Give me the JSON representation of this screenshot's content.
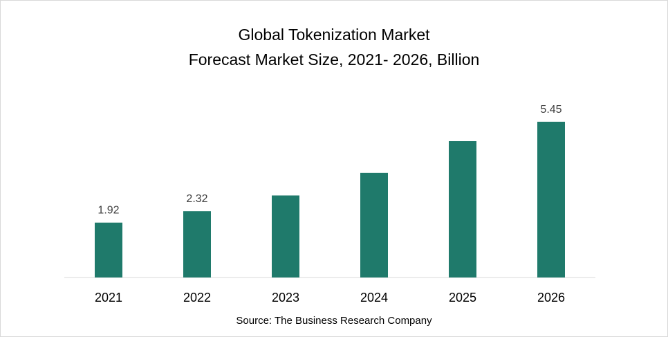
{
  "chart_data": {
    "type": "bar",
    "title": "Global Tokenization Market",
    "subtitle": "Forecast Market Size, 2021- 2026, Billion",
    "categories": [
      "2021",
      "2022",
      "2023",
      "2024",
      "2025",
      "2026"
    ],
    "values": [
      1.92,
      2.32,
      2.87,
      3.66,
      4.77,
      5.45
    ],
    "data_labels": [
      "1.92",
      "2.32",
      "",
      "",
      "",
      "5.45"
    ],
    "xlabel": "",
    "ylabel": "",
    "ylim": [
      0,
      5.6
    ],
    "grid": false,
    "bar_color": "#1f7a6b",
    "source": "Source: The Business Research Company"
  }
}
